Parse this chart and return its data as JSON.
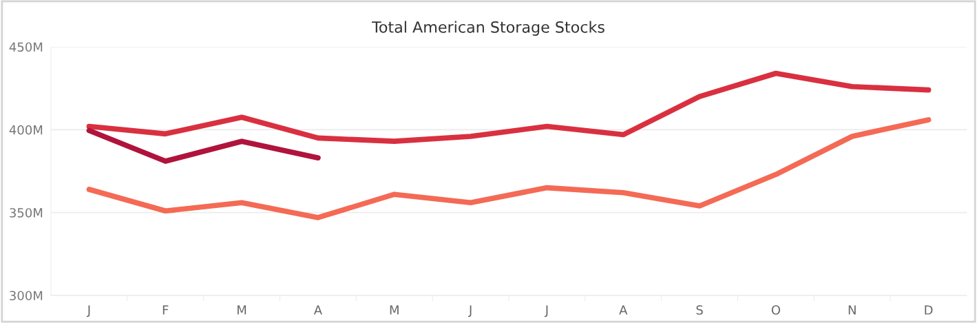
{
  "chart_data": {
    "type": "line",
    "title": "Total American Storage Stocks",
    "categories": [
      "J",
      "F",
      "M",
      "A",
      "M",
      "J",
      "J",
      "A",
      "S",
      "O",
      "N",
      "D"
    ],
    "series": [
      {
        "color": "#f46a55",
        "values": [
          364,
          351,
          356,
          347,
          361,
          356,
          365,
          362,
          354,
          373,
          396,
          406
        ]
      },
      {
        "color": "#d93040",
        "values": [
          402,
          397.5,
          407.5,
          395,
          393,
          396,
          402,
          397,
          420,
          434,
          426,
          424
        ]
      },
      {
        "color": "#b0133b",
        "values": [
          399.5,
          381,
          393,
          383,
          null,
          null,
          null,
          null,
          null,
          null,
          null,
          null
        ]
      }
    ],
    "ylim": [
      300,
      450
    ],
    "yticks": [
      {
        "value": 300,
        "label": "300M"
      },
      {
        "value": 350,
        "label": "350M"
      },
      {
        "value": 400,
        "label": "400M"
      },
      {
        "value": 450,
        "label": "450M"
      }
    ],
    "grid": "y",
    "marker": "none",
    "line_style": "solid"
  }
}
